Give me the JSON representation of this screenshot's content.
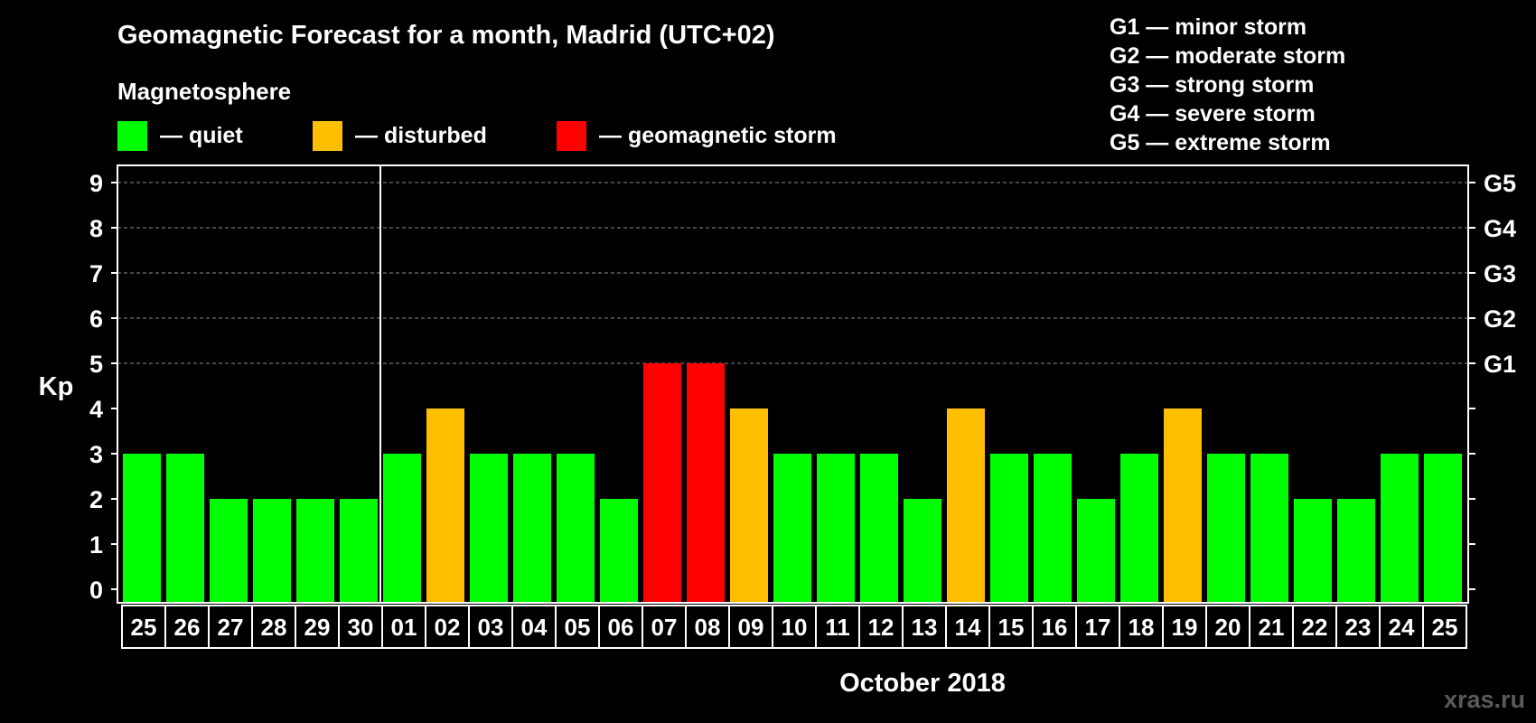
{
  "colors": {
    "background": "#000000",
    "foreground": "#ffffff",
    "quiet": "#00ff00",
    "disturbed": "#ffbf00",
    "storm": "#ff0000",
    "grid": "#8c8c8c",
    "watermark": "#5a5a5a"
  },
  "legend": {
    "heading": "Magnetosphere",
    "items": [
      {
        "key": "quiet",
        "label": "— quiet"
      },
      {
        "key": "disturbed",
        "label": "— disturbed"
      },
      {
        "key": "storm",
        "label": "— geomagnetic storm"
      }
    ]
  },
  "storm_scale": [
    "G1 — minor storm",
    "G2 — moderate storm",
    "G3 — strong storm",
    "G4 — severe storm",
    "G5 — extreme storm"
  ],
  "watermark": "xras.ru",
  "chart_data": {
    "type": "bar",
    "title": "Geomagnetic Forecast for a month, Madrid (UTC+02)",
    "ylabel": "Kp",
    "xlabel": "October 2018",
    "ylim": [
      0,
      9
    ],
    "yticks": [
      0,
      1,
      2,
      3,
      4,
      5,
      6,
      7,
      8,
      9
    ],
    "grid": "dashed horizontal lines at Kp 5–9",
    "right_axis_labels": [
      {
        "value": 5,
        "label": "G1"
      },
      {
        "value": 6,
        "label": "G2"
      },
      {
        "value": 7,
        "label": "G3"
      },
      {
        "value": 8,
        "label": "G4"
      },
      {
        "value": 9,
        "label": "G5"
      }
    ],
    "categories": [
      "25",
      "26",
      "27",
      "28",
      "29",
      "30",
      "01",
      "02",
      "03",
      "04",
      "05",
      "06",
      "07",
      "08",
      "09",
      "10",
      "11",
      "12",
      "13",
      "14",
      "15",
      "16",
      "17",
      "18",
      "19",
      "20",
      "21",
      "22",
      "23",
      "24",
      "25"
    ],
    "values": [
      3,
      3,
      2,
      2,
      2,
      2,
      3,
      4,
      3,
      3,
      3,
      2,
      5,
      5,
      4,
      3,
      3,
      3,
      2,
      4,
      3,
      3,
      2,
      3,
      4,
      3,
      3,
      2,
      2,
      3,
      3
    ],
    "status": [
      "quiet",
      "quiet",
      "quiet",
      "quiet",
      "quiet",
      "quiet",
      "quiet",
      "disturbed",
      "quiet",
      "quiet",
      "quiet",
      "quiet",
      "storm",
      "storm",
      "disturbed",
      "quiet",
      "quiet",
      "quiet",
      "quiet",
      "disturbed",
      "quiet",
      "quiet",
      "quiet",
      "quiet",
      "disturbed",
      "quiet",
      "quiet",
      "quiet",
      "quiet",
      "quiet",
      "quiet"
    ],
    "month_separator_after": "30"
  }
}
